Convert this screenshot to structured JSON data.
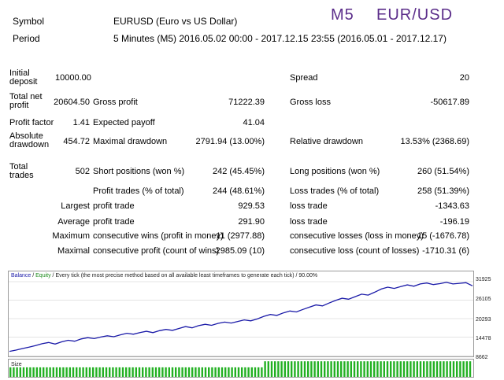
{
  "header": {
    "symbol_label": "Symbol",
    "symbol_value": "EURUSD (Euro vs US Dollar)",
    "period_label": "Period",
    "period_value": "5 Minutes (M5) 2016.05.02 00:00 - 2017.12.15 23:55 (2016.05.01 - 2017.12.17)",
    "title_tf": "M5",
    "title_pair": "EUR/USD"
  },
  "stats": {
    "initial_deposit_label": "Initial deposit",
    "initial_deposit_value": "10000.00",
    "spread_label": "Spread",
    "spread_value": "20",
    "total_net_profit_label": "Total net profit",
    "total_net_profit_value": "20604.50",
    "gross_profit_label": "Gross profit",
    "gross_profit_value": "71222.39",
    "gross_loss_label": "Gross loss",
    "gross_loss_value": "-50617.89",
    "profit_factor_label": "Profit factor",
    "profit_factor_value": "1.41",
    "expected_payoff_label": "Expected payoff",
    "expected_payoff_value": "41.04",
    "absolute_drawdown_label": "Absolute drawdown",
    "absolute_drawdown_value": "454.72",
    "maximal_drawdown_label": "Maximal drawdown",
    "maximal_drawdown_value": "2791.94 (13.00%)",
    "relative_drawdown_label": "Relative drawdown",
    "relative_drawdown_value": "13.53% (2368.69)",
    "total_trades_label": "Total trades",
    "total_trades_value": "502",
    "short_positions_label": "Short positions (won %)",
    "short_positions_value": "242 (45.45%)",
    "long_positions_label": "Long positions (won %)",
    "long_positions_value": "260 (51.54%)",
    "profit_trades_label": "Profit trades (% of total)",
    "profit_trades_value": "244 (48.61%)",
    "loss_trades_label": "Loss trades (% of total)",
    "loss_trades_value": "258 (51.39%)",
    "largest_label": "Largest",
    "largest_profit_label": "profit trade",
    "largest_profit_value": "929.53",
    "largest_loss_label": "loss trade",
    "largest_loss_value": "-1343.63",
    "average_label": "Average",
    "average_profit_label": "profit trade",
    "average_profit_value": "291.90",
    "average_loss_label": "loss trade",
    "average_loss_value": "-196.19",
    "maximum_label": "Maximum",
    "max_consec_wins_label": "consecutive wins (profit in money)",
    "max_consec_wins_value": "11 (2977.88)",
    "max_consec_losses_label": "consecutive losses (loss in money)",
    "max_consec_losses_value": "15 (-1676.78)",
    "maximal_label": "Maximal",
    "maximal_consec_profit_label": "consecutive profit (count of wins)",
    "maximal_consec_profit_value": "2985.09 (10)",
    "maximal_consec_loss_label": "consecutive loss (count of losses)",
    "maximal_consec_loss_value": "-1710.31 (6)"
  },
  "chart_legend": {
    "balance": "Balance",
    "sep1": " / ",
    "equity": "Equity",
    "rest": " / Every tick (the most precise method based on all available least timeframes to generate each tick) / 90.00%"
  },
  "size_label": "Size",
  "colors": {
    "balance_line": "#1a1aa8",
    "size_bars": "#22b022",
    "title": "#5b2d8a"
  },
  "chart_data": {
    "type": "line",
    "title": "",
    "xlabel": "",
    "ylabel": "",
    "y_ticks": [
      "31925",
      "26105",
      "20293",
      "14478",
      "8662"
    ],
    "ylim": [
      8662,
      31925
    ],
    "grid": true,
    "series": [
      {
        "name": "Balance",
        "values": [
          10000,
          10400,
          10900,
          11300,
          11800,
          12400,
          12800,
          12300,
          13000,
          13500,
          13200,
          13900,
          14300,
          14000,
          14500,
          14900,
          14600,
          15200,
          15700,
          15400,
          15900,
          16300,
          15900,
          16500,
          16900,
          16600,
          17200,
          17800,
          17400,
          18100,
          18500,
          18200,
          18800,
          19200,
          18900,
          19400,
          19900,
          19600,
          20200,
          21000,
          21600,
          21300,
          22100,
          22700,
          22400,
          23200,
          23900,
          24600,
          24300,
          25200,
          26000,
          26700,
          26400,
          27200,
          28000,
          27700,
          28600,
          29600,
          30200,
          29800,
          30400,
          30900,
          30500,
          31200,
          31500,
          31000,
          31300,
          31700,
          31200,
          31400,
          31600,
          30604.5
        ]
      }
    ],
    "size_bars": {
      "name": "Size",
      "count": 140,
      "levels": [
        0.55,
        0.9
      ]
    }
  }
}
